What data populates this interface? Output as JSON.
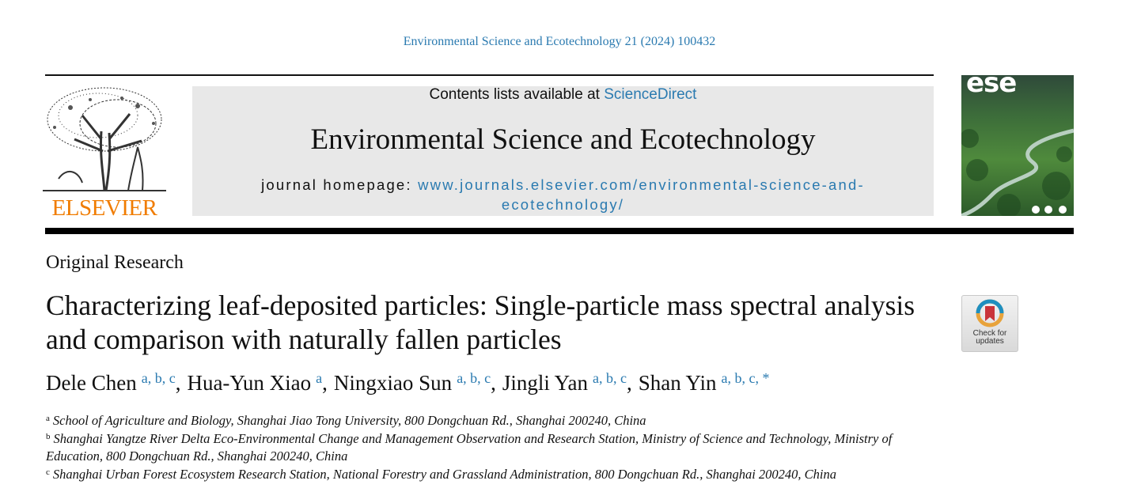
{
  "header": {
    "citation": "Environmental Science and Ecotechnology 21 (2024) 100432",
    "contents_prefix": "Contents lists available at",
    "contents_link": "ScienceDirect",
    "journal": "Environmental Science and Ecotechnology",
    "homepage_prefix": "journal homepage:",
    "homepage_url": "www.journals.elsevier.com/environmental-science-and-ecotechnology/",
    "publisher": "ELSEVIER",
    "cover_title": "ese"
  },
  "article": {
    "type": "Original Research",
    "title": "Characterizing leaf-deposited particles: Single-particle mass spectral analysis and comparison with naturally fallen particles",
    "check_updates": "Check for updates",
    "author_separator": ",",
    "authors": [
      {
        "name": "Dele Chen",
        "affiliations": "a, b, c"
      },
      {
        "name": "Hua-Yun Xiao",
        "affiliations": "a"
      },
      {
        "name": "Ningxiao Sun",
        "affiliations": "a, b, c"
      },
      {
        "name": "Jingli Yan",
        "affiliations": "a, b, c"
      },
      {
        "name": "Shan Yin",
        "affiliations": "a, b, c, *"
      }
    ],
    "affiliations": [
      {
        "label": "a",
        "text": "School of Agriculture and Biology, Shanghai Jiao Tong University, 800 Dongchuan Rd., Shanghai 200240, China"
      },
      {
        "label": "b",
        "text": "Shanghai Yangtze River Delta Eco-Environmental Change and Management Observation and Research Station, Ministry of Science and Technology, Ministry of Education, 800 Dongchuan Rd., Shanghai 200240, China"
      },
      {
        "label": "c",
        "text": "Shanghai Urban Forest Ecosystem Research Station, National Forestry and Grassland Administration, 800 Dongchuan Rd., Shanghai 200240, China"
      }
    ]
  }
}
